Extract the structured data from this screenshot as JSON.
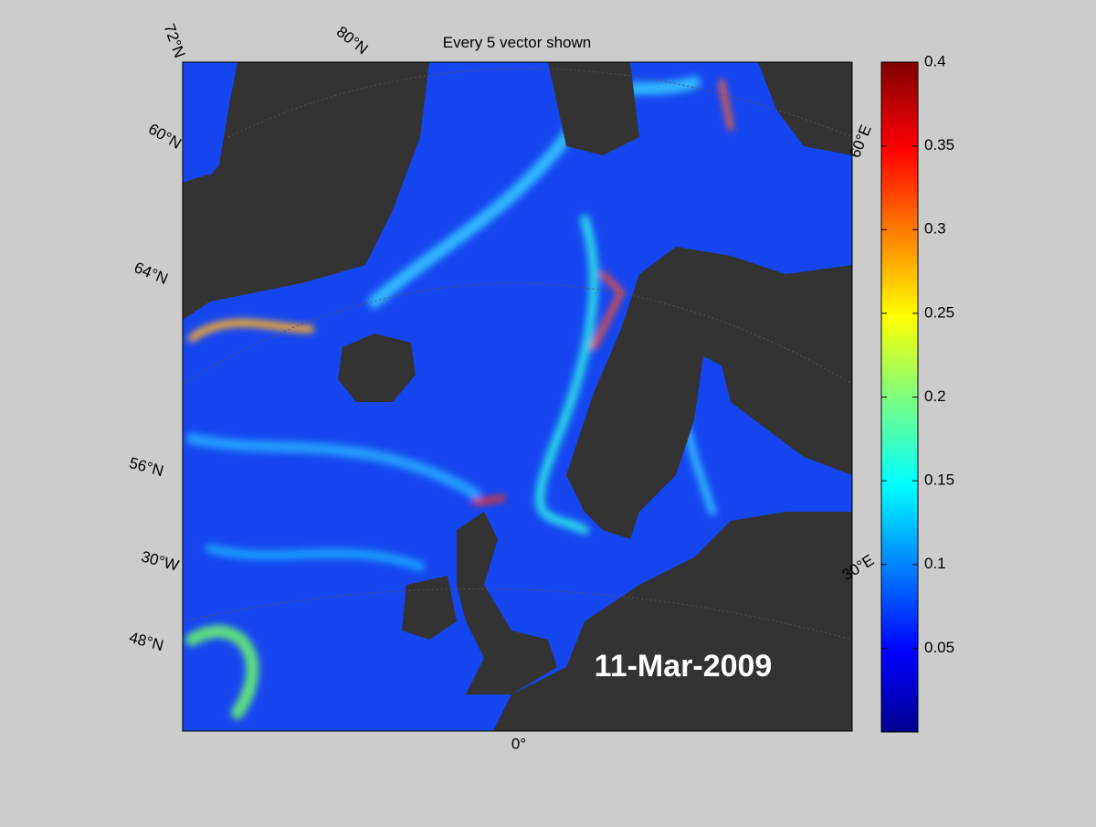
{
  "map": {
    "title": "Every 5 vector shown",
    "date": "11-Mar-2009",
    "graticule_labels": [
      "72°N",
      "80°N",
      "60°N",
      "64°N",
      "56°N",
      "30°W",
      "48°N",
      "0°",
      "30°E",
      "60°E"
    ]
  },
  "colorbar": {
    "lim": [
      0,
      0.4
    ],
    "ticks": [
      0.05,
      0.1,
      0.15,
      0.2,
      0.25,
      0.3,
      0.35,
      0.4
    ]
  }
}
